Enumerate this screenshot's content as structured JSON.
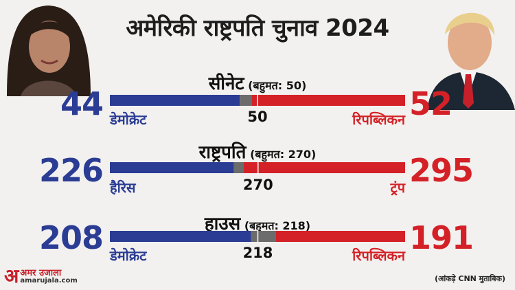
{
  "title": "अमेरिकी राष्ट्रपति चुनाव 2024",
  "colors": {
    "democrat": "#2b3c94",
    "republican": "#d42127",
    "undecided": "#6c6c6c",
    "background": "#f2f1ef"
  },
  "chart_data": [
    {
      "type": "bar",
      "title": "सीनेट",
      "majority_label": "(बहुमत: 50)",
      "total": 100,
      "majority": 50,
      "majority_text": "50",
      "left": {
        "value": 44,
        "value_text": "44",
        "label": "डेमोक्रेट"
      },
      "right": {
        "value": 52,
        "value_text": "52",
        "label": "रिपब्लिकन"
      }
    },
    {
      "type": "bar",
      "title": "राष्ट्रपति",
      "majority_label": "(बहुमत: 270)",
      "total": 538,
      "majority": 270,
      "majority_text": "270",
      "left": {
        "value": 226,
        "value_text": "226",
        "label": "हैरिस"
      },
      "right": {
        "value": 295,
        "value_text": "295",
        "label": "ट्रंप"
      }
    },
    {
      "type": "bar",
      "title": "हाउस",
      "majority_label": "(बहुमत: 218)",
      "total": 435,
      "majority": 218,
      "majority_text": "218",
      "left": {
        "value": 208,
        "value_text": "208",
        "label": "डेमोक्रेट"
      },
      "right": {
        "value": 191,
        "value_text": "191",
        "label": "रिपब्लिकन"
      }
    }
  ],
  "logo": {
    "mark": "अ",
    "hindi": "अमर उजाला",
    "english": "amarujala.com"
  },
  "source": "(आंकड़े CNN  मुताबिक)"
}
